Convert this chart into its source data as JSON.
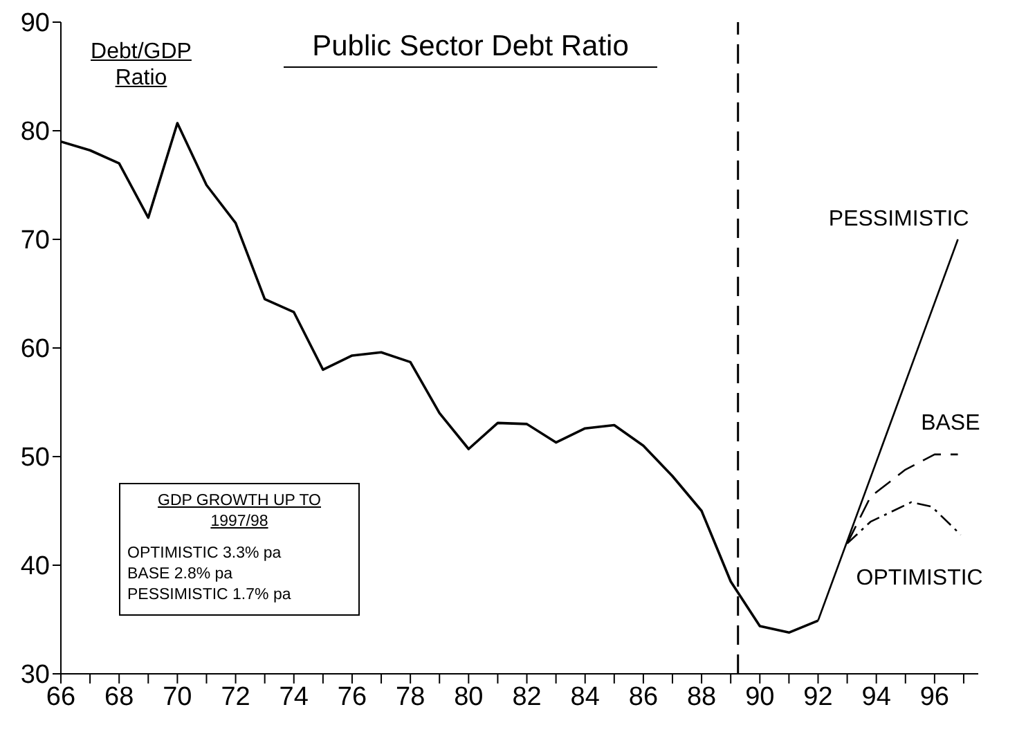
{
  "chart_data": {
    "type": "line",
    "title": "Public Sector Debt Ratio",
    "ylabel": "Debt/GDP Ratio",
    "xlim": [
      66,
      97.5
    ],
    "ylim": [
      30,
      90
    ],
    "xticks": [
      66,
      {
        "value": 67,
        "label": null
      },
      68,
      {
        "value": 69,
        "label": null
      },
      70,
      {
        "value": 71,
        "label": null
      },
      72,
      {
        "value": 73,
        "label": null
      },
      74,
      {
        "value": 75,
        "label": null
      },
      76,
      {
        "value": 77,
        "label": null
      },
      78,
      {
        "value": 79,
        "label": null
      },
      80,
      {
        "value": 81,
        "label": null
      },
      82,
      {
        "value": 83,
        "label": null
      },
      84,
      {
        "value": 85,
        "label": null
      },
      86,
      {
        "value": 87,
        "label": null
      },
      88,
      {
        "value": 89,
        "label": null
      },
      90,
      {
        "value": 91,
        "label": null
      },
      92,
      {
        "value": 93,
        "label": null
      },
      94,
      {
        "value": 95,
        "label": null
      },
      96,
      {
        "value": 97,
        "label": null
      }
    ],
    "yticks": [
      30,
      40,
      50,
      60,
      70,
      80,
      90
    ],
    "series": [
      {
        "color": "#000000",
        "line_style": "solid",
        "x": [
          66,
          67,
          68,
          69,
          70,
          71,
          72,
          73,
          74,
          75,
          76,
          77,
          78,
          79,
          80,
          81,
          82,
          83,
          84,
          85,
          86,
          87,
          88,
          89,
          90,
          91,
          92
        ],
        "values": [
          79,
          78.2,
          77,
          72,
          80.7,
          75,
          71.5,
          64.5,
          63.3,
          58,
          59.3,
          59.6,
          58.7,
          54,
          50.7,
          53.1,
          53,
          51.3,
          52.6,
          52.9,
          51,
          48.2,
          45,
          38.5,
          34.4,
          33.8,
          34.9
        ]
      },
      {
        "name": "PESSIMISTIC",
        "color": "#000000",
        "line_style": "solid",
        "x": [
          92,
          96.8
        ],
        "values": [
          34.9,
          70
        ]
      },
      {
        "name": "BASE",
        "color": "#000000",
        "line_style": "dashed",
        "x": [
          93,
          93.8,
          95,
          96,
          96.8
        ],
        "values": [
          42,
          46.3,
          48.8,
          50.2,
          50.2
        ]
      },
      {
        "name": "OPTIMISTIC",
        "color": "#000000",
        "line_style": "dotted",
        "x": [
          93,
          93.8,
          95.2,
          95.9,
          96.9
        ],
        "values": [
          42,
          44,
          45.8,
          45.4,
          42.8
        ]
      }
    ],
    "ref_lines": [
      {
        "axis": "x",
        "value": 89.25,
        "line_style": "dashed"
      }
    ],
    "annotations": [
      "GDP GROWTH UP TO 1997/98",
      "OPTIMISTIC 3.3% pa",
      "BASE 2.8% pa",
      "PESSIMISTIC 1.7% pa"
    ]
  }
}
